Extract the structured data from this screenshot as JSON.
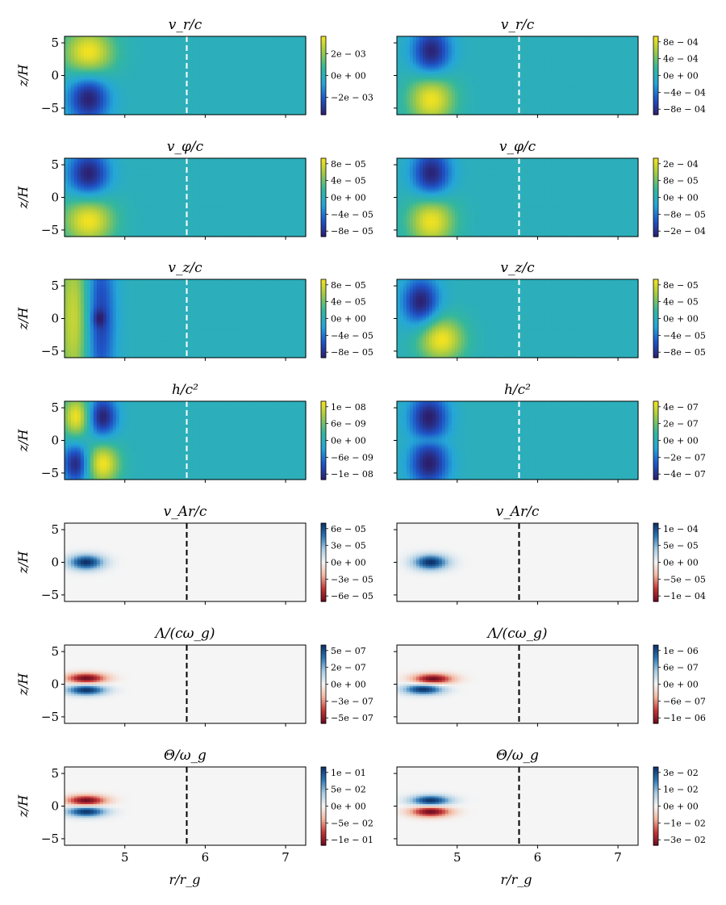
{
  "figure": {
    "xlabel": "r/r_g",
    "ylabel": "z/H"
  },
  "chart_data": {
    "type": "heatmap",
    "xlim": [
      4.25,
      7.25
    ],
    "ylim": [
      -6,
      6
    ],
    "xticks": [
      5,
      6,
      7
    ],
    "yticks": [
      5,
      0,
      -5
    ],
    "x_tick_labels": [
      "5",
      "6",
      "7"
    ],
    "y_tick_labels": [
      "5",
      "0",
      "−5"
    ],
    "xlabel": "r/r_g",
    "ylabel": "z/H",
    "reference_line_x": 5.77,
    "colormaps": {
      "viridis_like": [
        "#2d1f6e",
        "#1f55c8",
        "#25a6d8",
        "#34b79d",
        "#9dc94a",
        "#f7e31e"
      ],
      "red_blue": [
        "#6b0a1f",
        "#c43737",
        "#f2b7a0",
        "#f5f5f5",
        "#a9cce3",
        "#2e76b3",
        "#0b2f66"
      ]
    },
    "panels": [
      {
        "row": 0,
        "col": 0,
        "title": "v_r/c",
        "cmap": "viridis_like",
        "line": "white",
        "cb_ticks": [
          "2e − 03",
          "0e + 00",
          "−2e − 03"
        ],
        "blobs": [
          {
            "x": 4.55,
            "y": 3.5,
            "sx": 0.22,
            "sy": 2.6,
            "a": 1
          },
          {
            "x": 4.55,
            "y": -3.5,
            "sx": 0.18,
            "sy": 2.6,
            "a": -1
          }
        ]
      },
      {
        "row": 0,
        "col": 1,
        "title": "v_r/c",
        "cmap": "viridis_like",
        "line": "white",
        "cb_ticks": [
          "8e − 04",
          "4e − 04",
          "0e + 00",
          "−4e − 04",
          "−8e − 04"
        ],
        "blobs": [
          {
            "x": 4.68,
            "y": 3.5,
            "sx": 0.17,
            "sy": 2.8,
            "a": -1
          },
          {
            "x": 4.68,
            "y": -3.5,
            "sx": 0.2,
            "sy": 2.8,
            "a": 1
          }
        ]
      },
      {
        "row": 1,
        "col": 0,
        "title": "v_φ/c",
        "cmap": "viridis_like",
        "line": "white",
        "cb_ticks": [
          "8e − 05",
          "4e − 05",
          "0e + 00",
          "−4e − 05",
          "−8e − 05"
        ],
        "blobs": [
          {
            "x": 4.55,
            "y": 3.5,
            "sx": 0.18,
            "sy": 2.6,
            "a": -1
          },
          {
            "x": 4.55,
            "y": -3.5,
            "sx": 0.22,
            "sy": 2.6,
            "a": 1
          }
        ]
      },
      {
        "row": 1,
        "col": 1,
        "title": "v_φ/c",
        "cmap": "viridis_like",
        "line": "white",
        "cb_ticks": [
          "2e − 04",
          "8e − 05",
          "0e + 00",
          "−8e − 05",
          "−2e − 04"
        ],
        "blobs": [
          {
            "x": 4.68,
            "y": 3.5,
            "sx": 0.17,
            "sy": 2.8,
            "a": -1
          },
          {
            "x": 4.68,
            "y": -3.5,
            "sx": 0.2,
            "sy": 2.8,
            "a": 1
          }
        ]
      },
      {
        "row": 2,
        "col": 0,
        "title": "v_z/c",
        "cmap": "viridis_like",
        "line": "white",
        "cb_ticks": [
          "8e − 05",
          "4e − 05",
          "0e + 00",
          "−4e − 05",
          "−8e − 05"
        ],
        "blobs": [
          {
            "x": 4.38,
            "y": 0,
            "sx": 0.15,
            "sy": 9,
            "a": 0.85
          },
          {
            "x": 4.68,
            "y": 0,
            "sx": 0.14,
            "sy": 9,
            "a": -0.8
          },
          {
            "x": 4.68,
            "y": 0,
            "sx": 0.06,
            "sy": 0.9,
            "a": -0.35
          }
        ]
      },
      {
        "row": 2,
        "col": 1,
        "title": "v_z/c",
        "cmap": "viridis_like",
        "line": "white",
        "cb_ticks": [
          "8e − 05",
          "4e − 05",
          "0e + 00",
          "−4e − 05",
          "−8e − 05"
        ],
        "blobs": [
          {
            "x": 4.55,
            "y": 2.5,
            "sx": 0.16,
            "sy": 2.6,
            "a": -1
          },
          {
            "x": 4.8,
            "y": -3.2,
            "sx": 0.2,
            "sy": 2.4,
            "a": 1
          }
        ]
      },
      {
        "row": 3,
        "col": 0,
        "title": "h/c²",
        "cmap": "viridis_like",
        "line": "white",
        "cb_ticks": [
          "1e − 08",
          "6e − 09",
          "0e + 00",
          "−6e − 09",
          "−1e − 08"
        ],
        "blobs": [
          {
            "x": 4.4,
            "y": 3.6,
            "sx": 0.12,
            "sy": 2.2,
            "a": 1
          },
          {
            "x": 4.72,
            "y": 3.6,
            "sx": 0.13,
            "sy": 2.2,
            "a": -1
          },
          {
            "x": 4.4,
            "y": -3.6,
            "sx": 0.12,
            "sy": 2.2,
            "a": -1
          },
          {
            "x": 4.72,
            "y": -3.6,
            "sx": 0.15,
            "sy": 2.2,
            "a": 1
          }
        ]
      },
      {
        "row": 3,
        "col": 1,
        "title": "h/c²",
        "cmap": "viridis_like",
        "line": "white",
        "cb_ticks": [
          "4e − 07",
          "2e − 07",
          "0e + 00",
          "−2e − 07",
          "−4e − 07"
        ],
        "blobs": [
          {
            "x": 4.65,
            "y": 3.6,
            "sx": 0.17,
            "sy": 2.4,
            "a": -1
          },
          {
            "x": 4.65,
            "y": -3.6,
            "sx": 0.17,
            "sy": 2.4,
            "a": -1
          },
          {
            "x": 4.65,
            "y": 0,
            "sx": 0.15,
            "sy": 0.7,
            "a": 0.3
          }
        ]
      },
      {
        "row": 4,
        "col": 0,
        "title": "v_Ar/c",
        "cmap": "red_blue",
        "line": "black",
        "cb_ticks": [
          "6e − 05",
          "3e − 05",
          "0e + 00",
          "−3e − 05",
          "−6e − 05"
        ],
        "blobs": [
          {
            "x": 4.52,
            "y": 0,
            "sx": 0.15,
            "sy": 0.8,
            "a": 1
          }
        ]
      },
      {
        "row": 4,
        "col": 1,
        "title": "v_Ar/c",
        "cmap": "red_blue",
        "line": "black",
        "cb_ticks": [
          "1e − 04",
          "5e − 05",
          "0e + 00",
          "−5e − 05",
          "−1e − 04"
        ],
        "blobs": [
          {
            "x": 4.67,
            "y": 0,
            "sx": 0.15,
            "sy": 0.8,
            "a": 1
          }
        ]
      },
      {
        "row": 5,
        "col": 0,
        "title": "Λ/(cω_g)",
        "cmap": "red_blue",
        "line": "black",
        "cb_ticks": [
          "5e − 07",
          "2e − 07",
          "0e + 00",
          "−3e − 07",
          "−5e − 07"
        ],
        "blobs": [
          {
            "x": 4.52,
            "y": 0.9,
            "sx": 0.17,
            "sy": 0.55,
            "a": -1
          },
          {
            "x": 4.52,
            "y": -0.9,
            "sx": 0.17,
            "sy": 0.55,
            "a": 1
          }
        ]
      },
      {
        "row": 5,
        "col": 1,
        "title": "Λ/(cω_g)",
        "cmap": "red_blue",
        "line": "black",
        "cb_ticks": [
          "1e − 06",
          "6e − 07",
          "0e + 00",
          "−6e − 07",
          "−1e − 06"
        ],
        "blobs": [
          {
            "x": 4.7,
            "y": 0.8,
            "sx": 0.17,
            "sy": 0.55,
            "a": -1
          },
          {
            "x": 4.58,
            "y": -0.8,
            "sx": 0.17,
            "sy": 0.55,
            "a": 1
          }
        ]
      },
      {
        "row": 6,
        "col": 0,
        "title": "Θ/ω_g",
        "cmap": "red_blue",
        "line": "black",
        "cb_ticks": [
          "1e − 01",
          "5e − 02",
          "0e + 00",
          "−5e − 02",
          "−1e − 01"
        ],
        "blobs": [
          {
            "x": 4.52,
            "y": 0.85,
            "sx": 0.17,
            "sy": 0.55,
            "a": -1
          },
          {
            "x": 4.52,
            "y": -0.85,
            "sx": 0.17,
            "sy": 0.55,
            "a": 1
          }
        ]
      },
      {
        "row": 6,
        "col": 1,
        "title": "Θ/ω_g",
        "cmap": "red_blue",
        "line": "black",
        "cb_ticks": [
          "3e − 02",
          "1e − 02",
          "0e + 00",
          "−1e − 02",
          "−3e − 02"
        ],
        "blobs": [
          {
            "x": 4.67,
            "y": 0.85,
            "sx": 0.17,
            "sy": 0.55,
            "a": 1
          },
          {
            "x": 4.67,
            "y": -0.85,
            "sx": 0.17,
            "sy": 0.55,
            "a": -1
          }
        ]
      }
    ]
  }
}
